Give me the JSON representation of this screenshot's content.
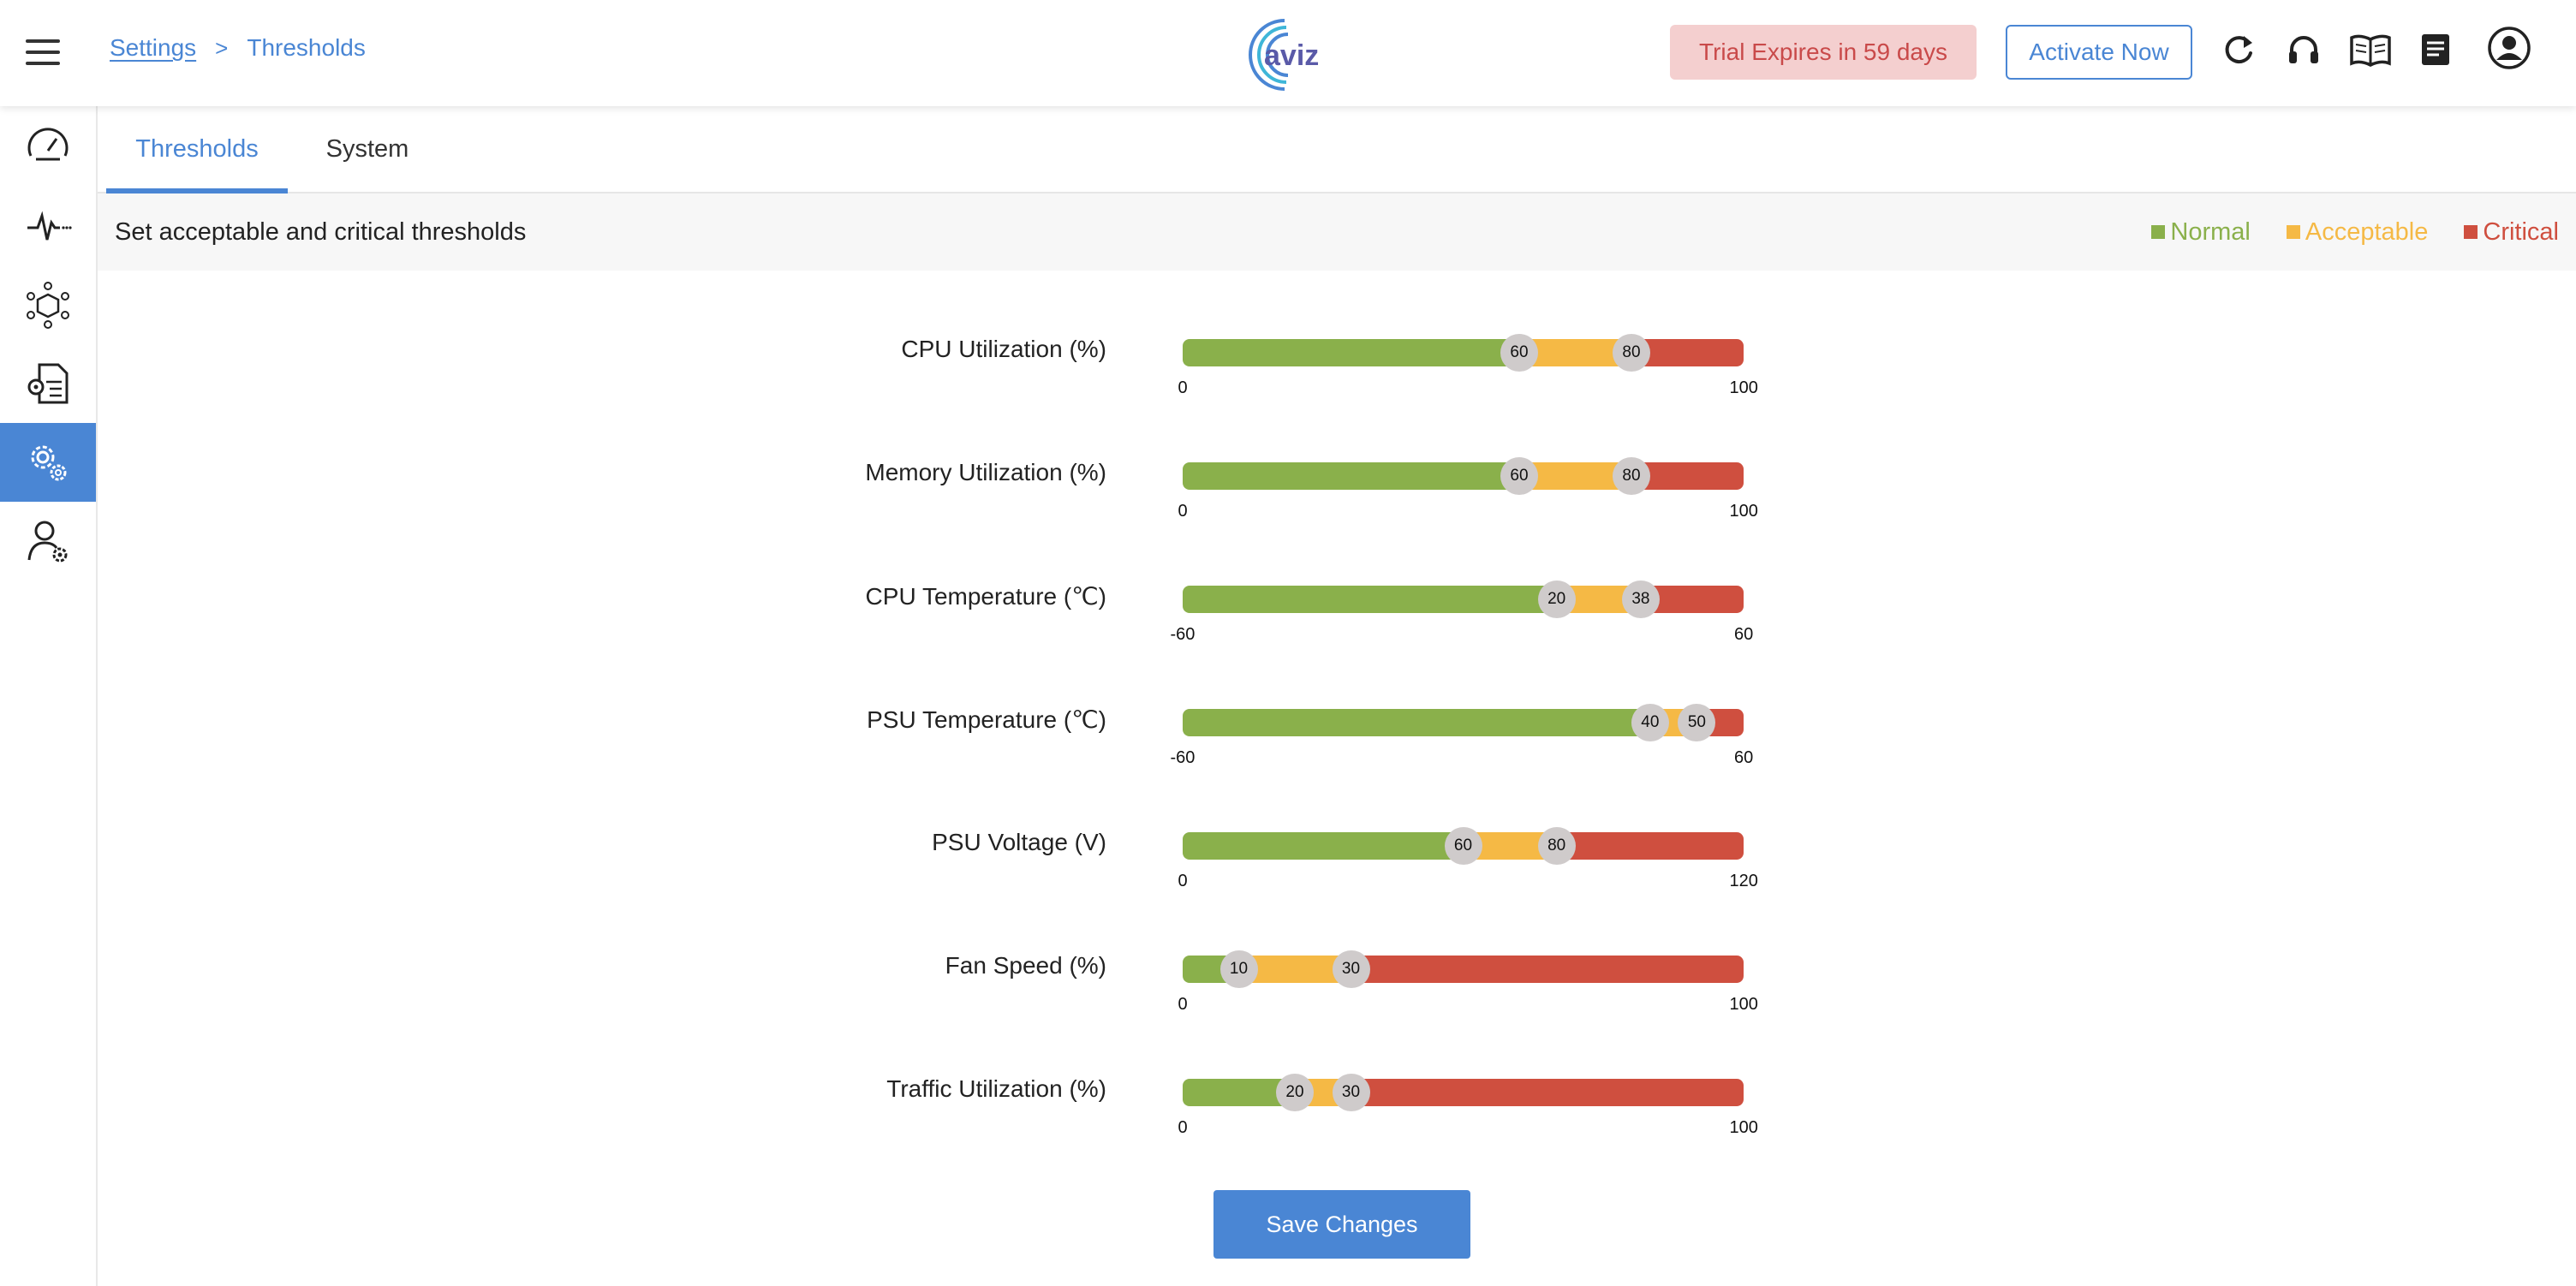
{
  "header": {
    "breadcrumb": [
      "Settings",
      "Thresholds"
    ],
    "logo_text": "aviz",
    "trial_text": "Trial Expires in 59 days",
    "activate_label": "Activate Now"
  },
  "tabs": [
    {
      "label": "Thresholds",
      "active": true
    },
    {
      "label": "System",
      "active": false
    }
  ],
  "subheader": {
    "title": "Set acceptable and critical thresholds",
    "legend": [
      {
        "label": "Normal",
        "color": "#8ab04b"
      },
      {
        "label": "Acceptable",
        "color": "#f5b945"
      },
      {
        "label": "Critical",
        "color": "#cf4f3f"
      }
    ]
  },
  "colors": {
    "accent": "#4a86d4",
    "normal": "#8ab04b",
    "acceptable": "#f5b945",
    "critical": "#cf4f3f"
  },
  "thresholds": [
    {
      "label": "CPU Utilization (%)",
      "min": 0,
      "max": 100,
      "acceptable": 60,
      "critical": 80
    },
    {
      "label": "Memory Utilization (%)",
      "min": 0,
      "max": 100,
      "acceptable": 60,
      "critical": 80
    },
    {
      "label": "CPU Temperature (℃)",
      "min": -60,
      "max": 60,
      "acceptable": 20,
      "critical": 38
    },
    {
      "label": "PSU Temperature (℃)",
      "min": -60,
      "max": 60,
      "acceptable": 40,
      "critical": 50
    },
    {
      "label": "PSU Voltage (V)",
      "min": 0,
      "max": 120,
      "acceptable": 60,
      "critical": 80
    },
    {
      "label": "Fan Speed (%)",
      "min": 0,
      "max": 100,
      "acceptable": 10,
      "critical": 30
    },
    {
      "label": "Traffic Utilization (%)",
      "min": 0,
      "max": 100,
      "acceptable": 20,
      "critical": 30
    }
  ],
  "save_label": "Save Changes"
}
